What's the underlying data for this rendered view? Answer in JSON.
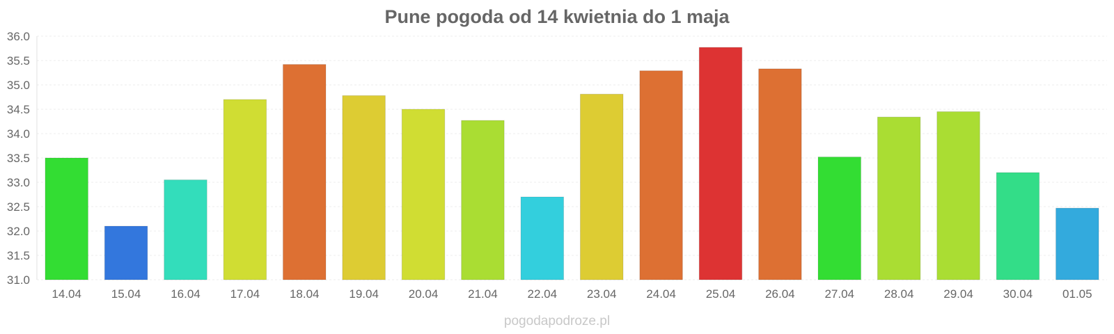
{
  "chart_data": {
    "type": "bar",
    "title": "Pune pogoda od 14 kwietnia do 1 maja",
    "xlabel": "",
    "ylabel": "",
    "ylim": [
      31.0,
      36.0
    ],
    "y_ticks": [
      "31.0",
      "31.5",
      "32.0",
      "32.5",
      "33.0",
      "33.5",
      "34.0",
      "34.5",
      "35.0",
      "35.5",
      "36.0"
    ],
    "categories": [
      "14.04",
      "15.04",
      "16.04",
      "17.04",
      "18.04",
      "19.04",
      "20.04",
      "21.04",
      "22.04",
      "23.04",
      "24.04",
      "25.04",
      "26.04",
      "27.04",
      "28.04",
      "29.04",
      "30.04",
      "01.05"
    ],
    "values": [
      33.5,
      32.1,
      33.05,
      34.7,
      35.42,
      34.78,
      34.5,
      34.27,
      32.7,
      34.81,
      35.29,
      35.77,
      35.33,
      33.52,
      34.34,
      34.45,
      33.2,
      32.47
    ],
    "colors": [
      "#33dd33",
      "#3377dd",
      "#33ddbb",
      "#d0dd33",
      "#dd7033",
      "#ddcc33",
      "#d0dd33",
      "#aadd33",
      "#33cfdd",
      "#ddcc33",
      "#dd7033",
      "#dd3333",
      "#dd7033",
      "#33dd33",
      "#aadd33",
      "#aadd33",
      "#33dd88",
      "#33aadd"
    ],
    "grid": true,
    "legend": "none"
  },
  "watermark": "pogodapodroze.pl"
}
